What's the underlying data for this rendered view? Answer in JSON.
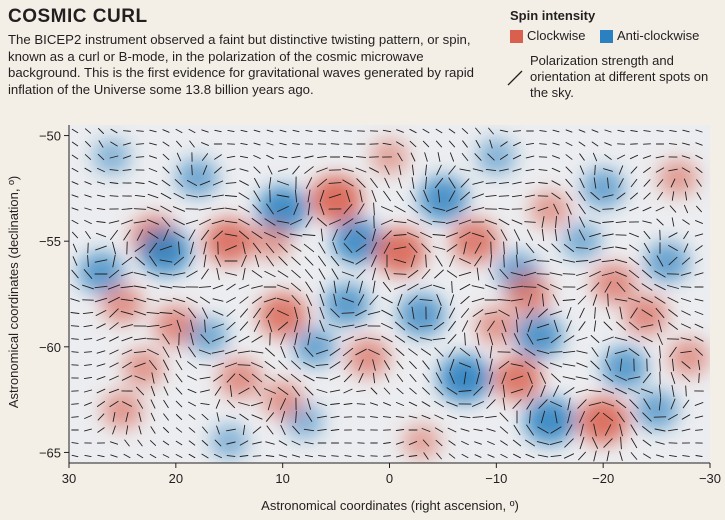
{
  "header": {
    "title": "COSMIC CURL",
    "description": "The BICEP2 instrument observed a faint but distinctive twisting pattern, or spin, known as a curl or B-mode, in the polarization of the cosmic microwave background. This is the first evidence for gravitational waves generated by rapid inflation of the Universe some 13.8 billion years ago."
  },
  "legend": {
    "title": "Spin intensity",
    "clockwise": "Clockwise",
    "anticlockwise": "Anti-clockwise",
    "polarization": "Polarization strength and orientation at different spots on the sky."
  },
  "colors": {
    "clockwise": "#d9604f",
    "anticlockwise": "#2a80c0",
    "field": "#ecedf0"
  },
  "chart_data": {
    "type": "heatmap",
    "title": "COSMIC CURL",
    "xlabel": "Astronomical coordinates (right ascension, º)",
    "ylabel": "Astronomical coordinates (declination, º)",
    "xlim": [
      30,
      -30
    ],
    "ylim": [
      -65.5,
      -49.5
    ],
    "xticks": [
      30,
      20,
      10,
      0,
      -10,
      -20,
      -30
    ],
    "xtick_labels": [
      "30",
      "20",
      "10",
      "0",
      "−10",
      "−20",
      "−30"
    ],
    "yticks": [
      -50,
      -55,
      -60,
      -65
    ],
    "ytick_labels": [
      "−50",
      "−55",
      "−60",
      "−65"
    ],
    "blobs": [
      {
        "ra": 27,
        "dec": -56.5,
        "type": "anticlockwise",
        "strength": 0.7
      },
      {
        "ra": 25,
        "dec": -58,
        "type": "clockwise",
        "strength": 0.5
      },
      {
        "ra": 22,
        "dec": -54.8,
        "type": "clockwise",
        "strength": 0.75
      },
      {
        "ra": 21,
        "dec": -55.5,
        "type": "anticlockwise",
        "strength": 0.95
      },
      {
        "ra": 20,
        "dec": -59,
        "type": "clockwise",
        "strength": 0.6
      },
      {
        "ra": 23,
        "dec": -61,
        "type": "clockwise",
        "strength": 0.45
      },
      {
        "ra": 25,
        "dec": -63,
        "type": "clockwise",
        "strength": 0.45
      },
      {
        "ra": 15,
        "dec": -55,
        "type": "clockwise",
        "strength": 0.9
      },
      {
        "ra": 18,
        "dec": -52,
        "type": "anticlockwise",
        "strength": 0.5
      },
      {
        "ra": 17,
        "dec": -59.5,
        "type": "anticlockwise",
        "strength": 0.45
      },
      {
        "ra": 14,
        "dec": -61.5,
        "type": "clockwise",
        "strength": 0.55
      },
      {
        "ra": 10,
        "dec": -53.5,
        "type": "anticlockwise",
        "strength": 0.95
      },
      {
        "ra": 10,
        "dec": -58.5,
        "type": "clockwise",
        "strength": 0.85
      },
      {
        "ra": 11,
        "dec": -55,
        "type": "clockwise",
        "strength": 0.4
      },
      {
        "ra": 7,
        "dec": -60,
        "type": "anticlockwise",
        "strength": 0.55
      },
      {
        "ra": 8,
        "dec": -63.5,
        "type": "anticlockwise",
        "strength": 0.35
      },
      {
        "ra": 5,
        "dec": -53,
        "type": "clockwise",
        "strength": 1.0
      },
      {
        "ra": 3,
        "dec": -55,
        "type": "anticlockwise",
        "strength": 0.9
      },
      {
        "ra": 4,
        "dec": -58,
        "type": "anticlockwise",
        "strength": 0.7
      },
      {
        "ra": 2,
        "dec": -60.5,
        "type": "clockwise",
        "strength": 0.55
      },
      {
        "ra": 10,
        "dec": -62.5,
        "type": "clockwise",
        "strength": 0.45
      },
      {
        "ra": -1,
        "dec": -55.5,
        "type": "clockwise",
        "strength": 0.95
      },
      {
        "ra": -5,
        "dec": -53,
        "type": "anticlockwise",
        "strength": 0.85
      },
      {
        "ra": -3,
        "dec": -58.5,
        "type": "anticlockwise",
        "strength": 0.75
      },
      {
        "ra": -8,
        "dec": -55,
        "type": "clockwise",
        "strength": 0.8
      },
      {
        "ra": -7,
        "dec": -61.5,
        "type": "anticlockwise",
        "strength": 1.0
      },
      {
        "ra": -10,
        "dec": -59,
        "type": "clockwise",
        "strength": 0.45
      },
      {
        "ra": -12,
        "dec": -56.5,
        "type": "anticlockwise",
        "strength": 0.6
      },
      {
        "ra": -12,
        "dec": -61.5,
        "type": "clockwise",
        "strength": 0.85
      },
      {
        "ra": -13,
        "dec": -57.5,
        "type": "clockwise",
        "strength": 0.65
      },
      {
        "ra": -15,
        "dec": -53.5,
        "type": "clockwise",
        "strength": 0.4
      },
      {
        "ra": -14,
        "dec": -59.5,
        "type": "anticlockwise",
        "strength": 0.8
      },
      {
        "ra": -15,
        "dec": -63.5,
        "type": "anticlockwise",
        "strength": 0.95
      },
      {
        "ra": -18,
        "dec": -55,
        "type": "anticlockwise",
        "strength": 0.4
      },
      {
        "ra": -20,
        "dec": -63.5,
        "type": "clockwise",
        "strength": 0.95
      },
      {
        "ra": -21,
        "dec": -57,
        "type": "clockwise",
        "strength": 0.6
      },
      {
        "ra": -20,
        "dec": -52.5,
        "type": "anticlockwise",
        "strength": 0.55
      },
      {
        "ra": -22,
        "dec": -61,
        "type": "anticlockwise",
        "strength": 0.7
      },
      {
        "ra": -24,
        "dec": -58.5,
        "type": "clockwise",
        "strength": 0.6
      },
      {
        "ra": -25,
        "dec": -63,
        "type": "anticlockwise",
        "strength": 0.55
      },
      {
        "ra": -26,
        "dec": -56,
        "type": "anticlockwise",
        "strength": 0.6
      },
      {
        "ra": -27,
        "dec": -52,
        "type": "clockwise",
        "strength": 0.4
      },
      {
        "ra": -28,
        "dec": -60.5,
        "type": "clockwise",
        "strength": 0.45
      },
      {
        "ra": 26,
        "dec": -51,
        "type": "anticlockwise",
        "strength": 0.3
      },
      {
        "ra": 0,
        "dec": -51,
        "type": "clockwise",
        "strength": 0.3
      },
      {
        "ra": -10,
        "dec": -51,
        "type": "anticlockwise",
        "strength": 0.35
      },
      {
        "ra": 15,
        "dec": -64.5,
        "type": "anticlockwise",
        "strength": 0.3
      },
      {
        "ra": -3,
        "dec": -64.5,
        "type": "clockwise",
        "strength": 0.3
      }
    ]
  }
}
